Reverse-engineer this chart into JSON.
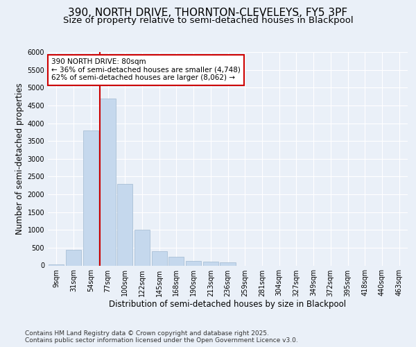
{
  "title_line1": "390, NORTH DRIVE, THORNTON-CLEVELEYS, FY5 3PF",
  "title_line2": "Size of property relative to semi-detached houses in Blackpool",
  "xlabel": "Distribution of semi-detached houses by size in Blackpool",
  "ylabel": "Number of semi-detached properties",
  "categories": [
    "9sqm",
    "31sqm",
    "54sqm",
    "77sqm",
    "100sqm",
    "122sqm",
    "145sqm",
    "168sqm",
    "190sqm",
    "213sqm",
    "236sqm",
    "259sqm",
    "281sqm",
    "304sqm",
    "327sqm",
    "349sqm",
    "372sqm",
    "395sqm",
    "418sqm",
    "440sqm",
    "463sqm"
  ],
  "bar_values": [
    30,
    440,
    3800,
    4700,
    2300,
    1000,
    400,
    240,
    130,
    100,
    80,
    0,
    0,
    0,
    0,
    0,
    0,
    0,
    0,
    0,
    0
  ],
  "bar_color": "#c5d8ed",
  "bar_edge_color": "#a0b8d0",
  "vline_color": "#cc0000",
  "annotation_text": "390 NORTH DRIVE: 80sqm\n← 36% of semi-detached houses are smaller (4,748)\n62% of semi-detached houses are larger (8,062) →",
  "annotation_box_color": "#ffffff",
  "annotation_box_edge": "#cc0000",
  "ylim": [
    0,
    6000
  ],
  "yticks": [
    0,
    500,
    1000,
    1500,
    2000,
    2500,
    3000,
    3500,
    4000,
    4500,
    5000,
    5500,
    6000
  ],
  "background_color": "#eaf0f8",
  "plot_bg_color": "#eaf0f8",
  "grid_color": "#ffffff",
  "footer_text": "Contains HM Land Registry data © Crown copyright and database right 2025.\nContains public sector information licensed under the Open Government Licence v3.0.",
  "title_fontsize": 11,
  "subtitle_fontsize": 9.5,
  "axis_label_fontsize": 8.5,
  "tick_fontsize": 7,
  "footer_fontsize": 6.5,
  "vline_bar_index": 3
}
